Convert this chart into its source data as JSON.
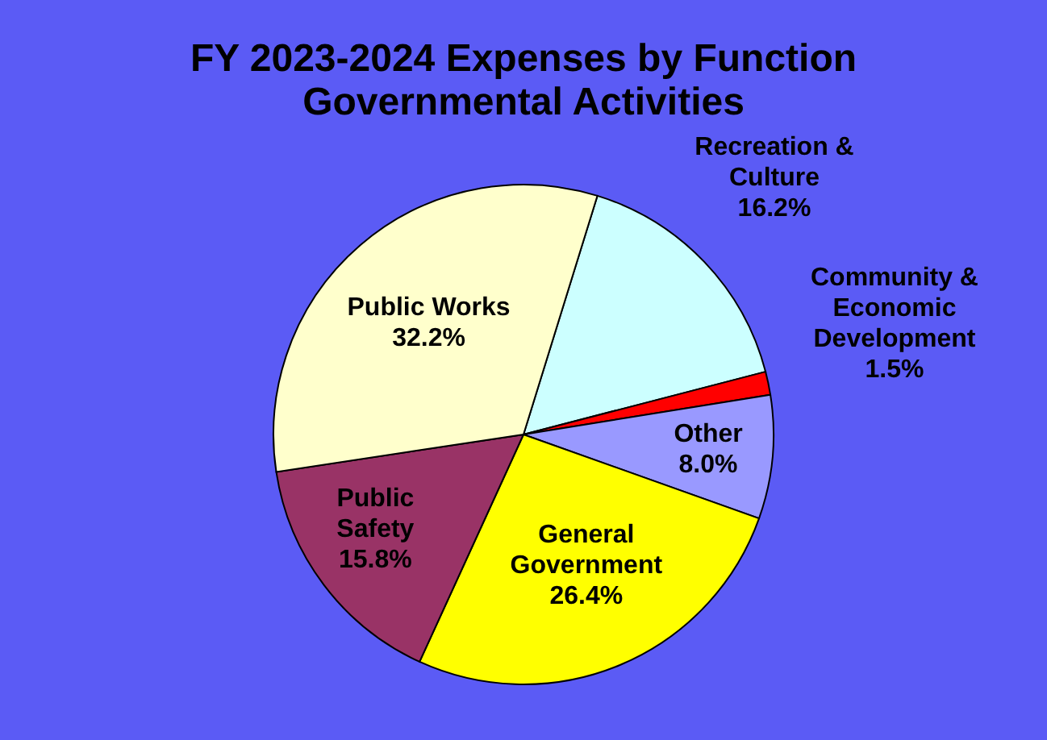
{
  "chart_data": {
    "type": "pie",
    "title": "FY 2023-2024 Expenses by Function",
    "subtitle": "Governmental Activities",
    "categories": [
      "Recreation & Culture",
      "Community & Economic Development",
      "Other",
      "General Government",
      "Public Safety",
      "Public Works"
    ],
    "values": [
      16.2,
      1.5,
      8.0,
      26.4,
      15.8,
      32.2
    ],
    "colors": [
      "#ccffff",
      "#ff0000",
      "#9999ff",
      "#ffff00",
      "#993366",
      "#ffffcc"
    ],
    "value_labels": [
      "16.2%",
      "1.5%",
      "8.0%",
      "26.4%",
      "15.8%",
      "32.2%"
    ]
  }
}
